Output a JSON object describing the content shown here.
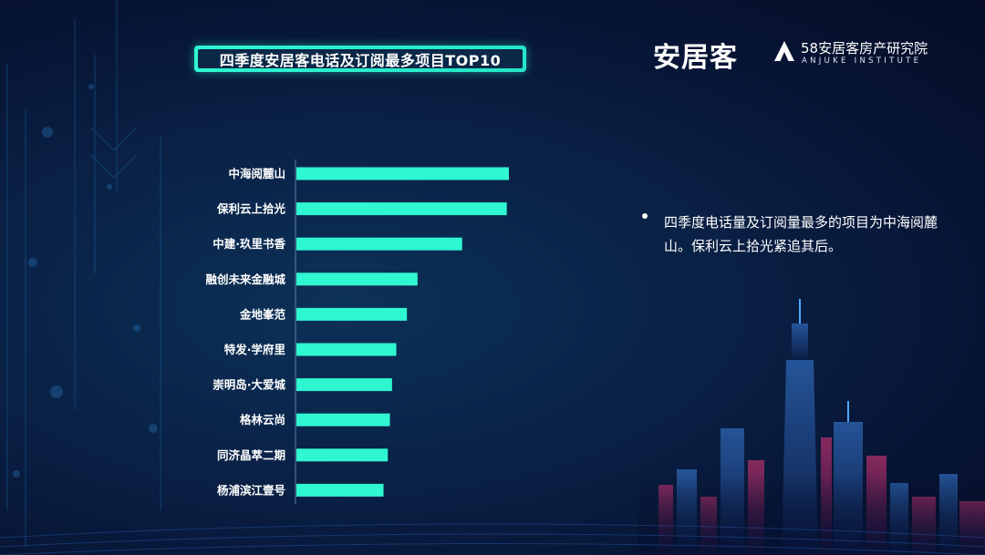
{
  "header": {
    "title": "四季度安居客电话及订阅最多项目TOP10",
    "logo_main": "安居客",
    "logo_institute_name": "58安居客房产研究院",
    "logo_institute_en": "ANJUKE INSTITUTE"
  },
  "note": {
    "text": "四季度电话量及订阅量最多的项目为中海阅麓山。保利云上拾光紧追其后。"
  },
  "chart_data": {
    "type": "bar",
    "orientation": "horizontal",
    "categories": [
      "中海阅麓山",
      "保利云上拾光",
      "中建·玖里书香",
      "融创未来金融城",
      "金地峯范",
      "特发·学府里",
      "崇明岛·大爱城",
      "格林云尚",
      "同济晶萃二期",
      "杨浦滨江壹号"
    ],
    "values": [
      100,
      99,
      78,
      57,
      52,
      47,
      45,
      44,
      43,
      41
    ],
    "bar_color": "#2ff7d2",
    "xlim": [
      0,
      100
    ],
    "title": "",
    "xlabel": "",
    "ylabel": "",
    "grid": false,
    "legend": "none"
  }
}
